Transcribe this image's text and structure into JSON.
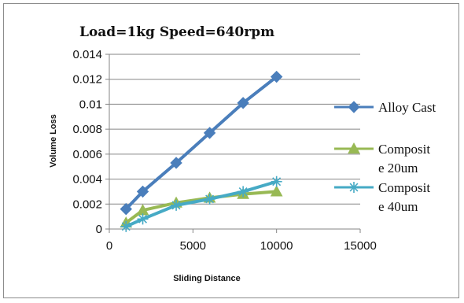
{
  "chart_data": {
    "type": "line",
    "title": "Load=1kg Speed=640rpm",
    "xlabel": "Sliding Distance",
    "ylabel": "Volume Loss",
    "xlim": [
      0,
      15000
    ],
    "ylim": [
      0,
      0.014
    ],
    "x_ticks": [
      "0",
      "5000",
      "10000",
      "15000"
    ],
    "y_ticks": [
      "0",
      "0.002",
      "0.004",
      "0.006",
      "0.008",
      "0.01",
      "0.012",
      "0.014"
    ],
    "grid": "horizontal",
    "legend_position": "right",
    "series": [
      {
        "name": "Alloy Cast",
        "color": "#4a7ebb",
        "marker": "diamond",
        "x": [
          1000,
          2000,
          4000,
          6000,
          8000,
          10000
        ],
        "y": [
          0.0016,
          0.003,
          0.0053,
          0.0077,
          0.0101,
          0.0122
        ]
      },
      {
        "name": "Composite 20um",
        "legend_lines": [
          "Composit",
          "e 20um"
        ],
        "color": "#98b954",
        "marker": "triangle",
        "x": [
          1000,
          2000,
          4000,
          6000,
          8000,
          10000
        ],
        "y": [
          0.0005,
          0.0015,
          0.0021,
          0.0025,
          0.0028,
          0.003
        ]
      },
      {
        "name": "Composite 40um",
        "legend_lines": [
          "Composit",
          "e 40um"
        ],
        "color": "#46aac5",
        "marker": "asterisk",
        "x": [
          1000,
          2000,
          4000,
          6000,
          8000,
          10000
        ],
        "y": [
          0.0002,
          0.0008,
          0.0019,
          0.0024,
          0.003,
          0.0038
        ]
      }
    ]
  }
}
